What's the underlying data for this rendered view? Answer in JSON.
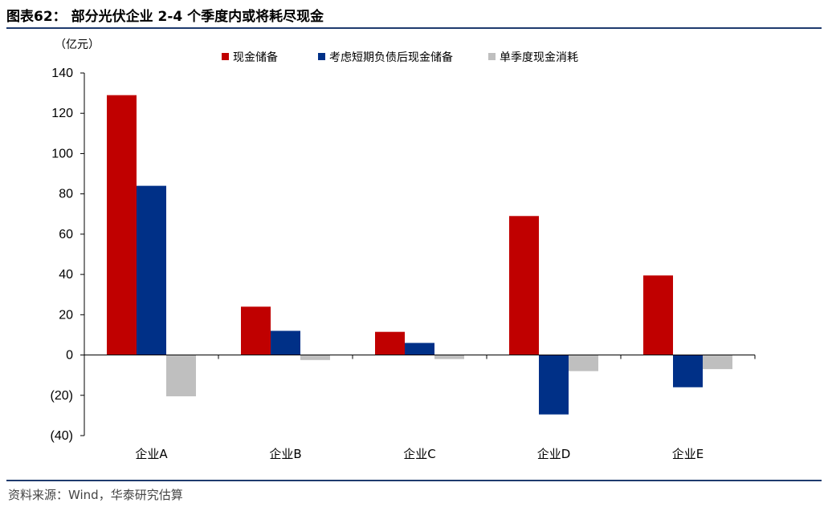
{
  "figure": {
    "title": "图表62：  部分光伏企业 2-4 个季度内或将耗尽现金",
    "source": "资料来源：Wind，华泰研究估算"
  },
  "chart_data": {
    "type": "bar",
    "unit_label": "（亿元）",
    "categories": [
      "企业A",
      "企业B",
      "企业C",
      "企业D",
      "企业E"
    ],
    "series": [
      {
        "name": "现金储备",
        "color": "#c00000",
        "values": [
          129,
          24,
          11.5,
          69,
          39.5
        ]
      },
      {
        "name": "考虑短期负债后现金储备",
        "color": "#003087",
        "values": [
          84,
          12,
          6,
          -29.5,
          -16
        ]
      },
      {
        "name": "单季度现金消耗",
        "color": "#bfbfbf",
        "values": [
          -20.5,
          -2.5,
          -2,
          -8,
          -7
        ]
      }
    ],
    "yticks": [
      140,
      120,
      100,
      80,
      60,
      40,
      20,
      0,
      -20,
      -40
    ],
    "ytick_labels": [
      "140",
      "120",
      "100",
      "80",
      "60",
      "40",
      "20",
      "0",
      "(20)",
      "(40)"
    ],
    "ylim": [
      -40,
      140
    ],
    "grid": false,
    "legend_position": "top"
  }
}
